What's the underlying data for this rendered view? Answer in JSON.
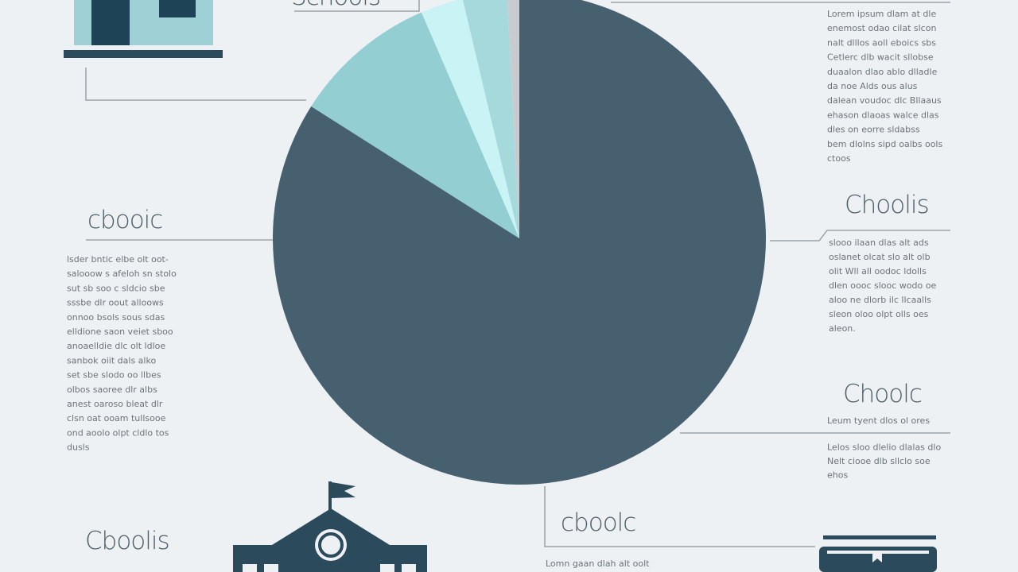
{
  "chart_data": {
    "type": "pie",
    "values": [
      84,
      9.5,
      2.8,
      2.9,
      0.8
    ],
    "colors": [
      "#46606f",
      "#93cfd2",
      "#c9f3f5",
      "#a6d9dc",
      "#c8ccd0"
    ]
  },
  "annotations": [
    {
      "title": "Schools",
      "lines": [
        "Lorem ipsum dlam at dle",
        "enemost odao cilat slcon",
        "nalt dlllos aoll eboics sbs",
        "Cetlerc dlb wacit sllobse",
        "duaalon dlao ablo dlladle",
        "da noe Alds ous alus",
        "dalean voudoc dlc Bllaaus",
        "ehason dlaoas walce dlas",
        "dles on eorre sldabss",
        "bem dlolns sipd oalbs ools",
        "ctoos"
      ]
    },
    {
      "title": "cbooic",
      "lines": [
        "lsder bntic elbe olt oot-",
        "salooow s afeloh sn stolo",
        "sut sb soo c sldcio sbe",
        "sssbe dlr oout alloows",
        "onnoo bsols sous sdas",
        "elldione saon veiet sboo",
        "anoaelldie dlc olt ldloe",
        "sanbok oiit dals alko",
        "set sbe slodo oo llbes",
        "olbos saoree dlr albs",
        "anest oaroso bleat dlr",
        "clsn oat ooam tullsooe",
        "ond aoolo olpt cldlo tos",
        "dusls"
      ]
    },
    {
      "title": "Choolis",
      "lines": [
        "slooo ilaan dlas alt ads",
        "oslanet olcat slo alt olb",
        "olit Wll all oodoc ldolls",
        "dlen oooc slooc wodo oe",
        "aloo ne dlorb ilc llcaalls",
        "sleon oloo olpt olls oes",
        "aleon."
      ]
    },
    {
      "title": "Choolc",
      "lines": [
        "Leum tyent dlos ol ores",
        "Lelos sloo dlelio dlalas dlo",
        "Nelt ciooe dlb sllclo soe",
        "ehos"
      ]
    },
    {
      "title": "cboolc",
      "lines": [
        "Lomn gaan dlah alt oolt"
      ]
    },
    {
      "title": "Cboolis",
      "lines": []
    }
  ]
}
